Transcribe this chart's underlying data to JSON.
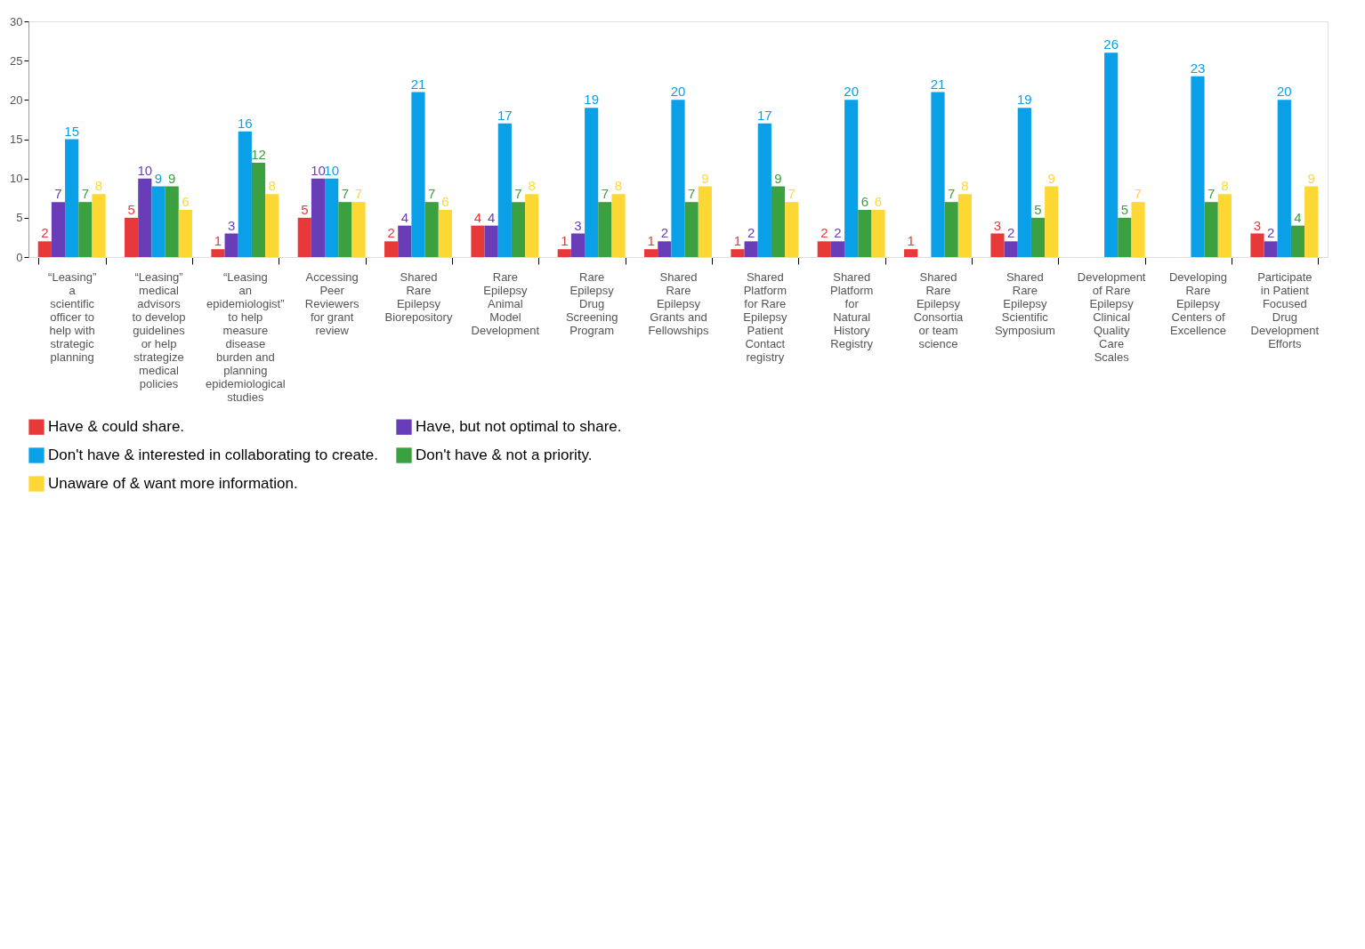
{
  "chart_data": {
    "type": "bar",
    "categories": [
      "“Leasing” a scientific officer to help with strategic planning",
      "“Leasing” medical advisors to develop guidelines or help strategize medical policies",
      "“Leasing an epidemiologist” to help measure disease burden and planning epidemiological studies",
      "Accessing Peer Reviewers for grant review",
      "Shared Rare Epilepsy Biorepository",
      "Rare Epilepsy Animal Model Development",
      "Rare Epilepsy Drug Screening Program",
      "Shared Rare Epilepsy Grants and Fellowships",
      "Shared Platform for Rare Epilepsy Patient Contact registry",
      "Shared Platform for Natural History Registry",
      "Shared Rare Epilepsy Consortia or team science",
      "Shared Rare Epilepsy Scientific Symposium",
      "Development of Rare Epilepsy Clinical Quality Care Scales",
      "Developing Rare Epilepsy Centers of Excellence",
      "Participate in Patient Focused Drug Development Efforts"
    ],
    "series": [
      {
        "name": "Have & could share.",
        "color": "#e8393a",
        "values": [
          2,
          5,
          1,
          5,
          2,
          4,
          1,
          1,
          1,
          2,
          1,
          3,
          null,
          null,
          3
        ]
      },
      {
        "name": "Have, but not optimal to share.",
        "color": "#6a3db8",
        "values": [
          7,
          10,
          3,
          10,
          4,
          4,
          3,
          2,
          2,
          2,
          null,
          2,
          null,
          null,
          2
        ]
      },
      {
        "name": "Don't have & interested in collaborating to create.",
        "color": "#0aa0e8",
        "values": [
          15,
          9,
          16,
          10,
          21,
          17,
          19,
          20,
          17,
          20,
          21,
          19,
          26,
          23,
          20
        ]
      },
      {
        "name": "Don't have & not a priority.",
        "color": "#3aa040",
        "values": [
          7,
          9,
          12,
          7,
          7,
          7,
          7,
          7,
          9,
          6,
          7,
          5,
          5,
          7,
          4
        ]
      },
      {
        "name": "Unaware of & want more information.",
        "color": "#fdd835",
        "values": [
          8,
          6,
          8,
          7,
          6,
          8,
          8,
          9,
          7,
          6,
          8,
          9,
          7,
          8,
          9
        ]
      }
    ],
    "ylim": [
      0,
      30
    ],
    "yticks": [
      0,
      5,
      10,
      15,
      20,
      25,
      30
    ],
    "grid": false,
    "legend": "bottom",
    "data_labels": true
  }
}
